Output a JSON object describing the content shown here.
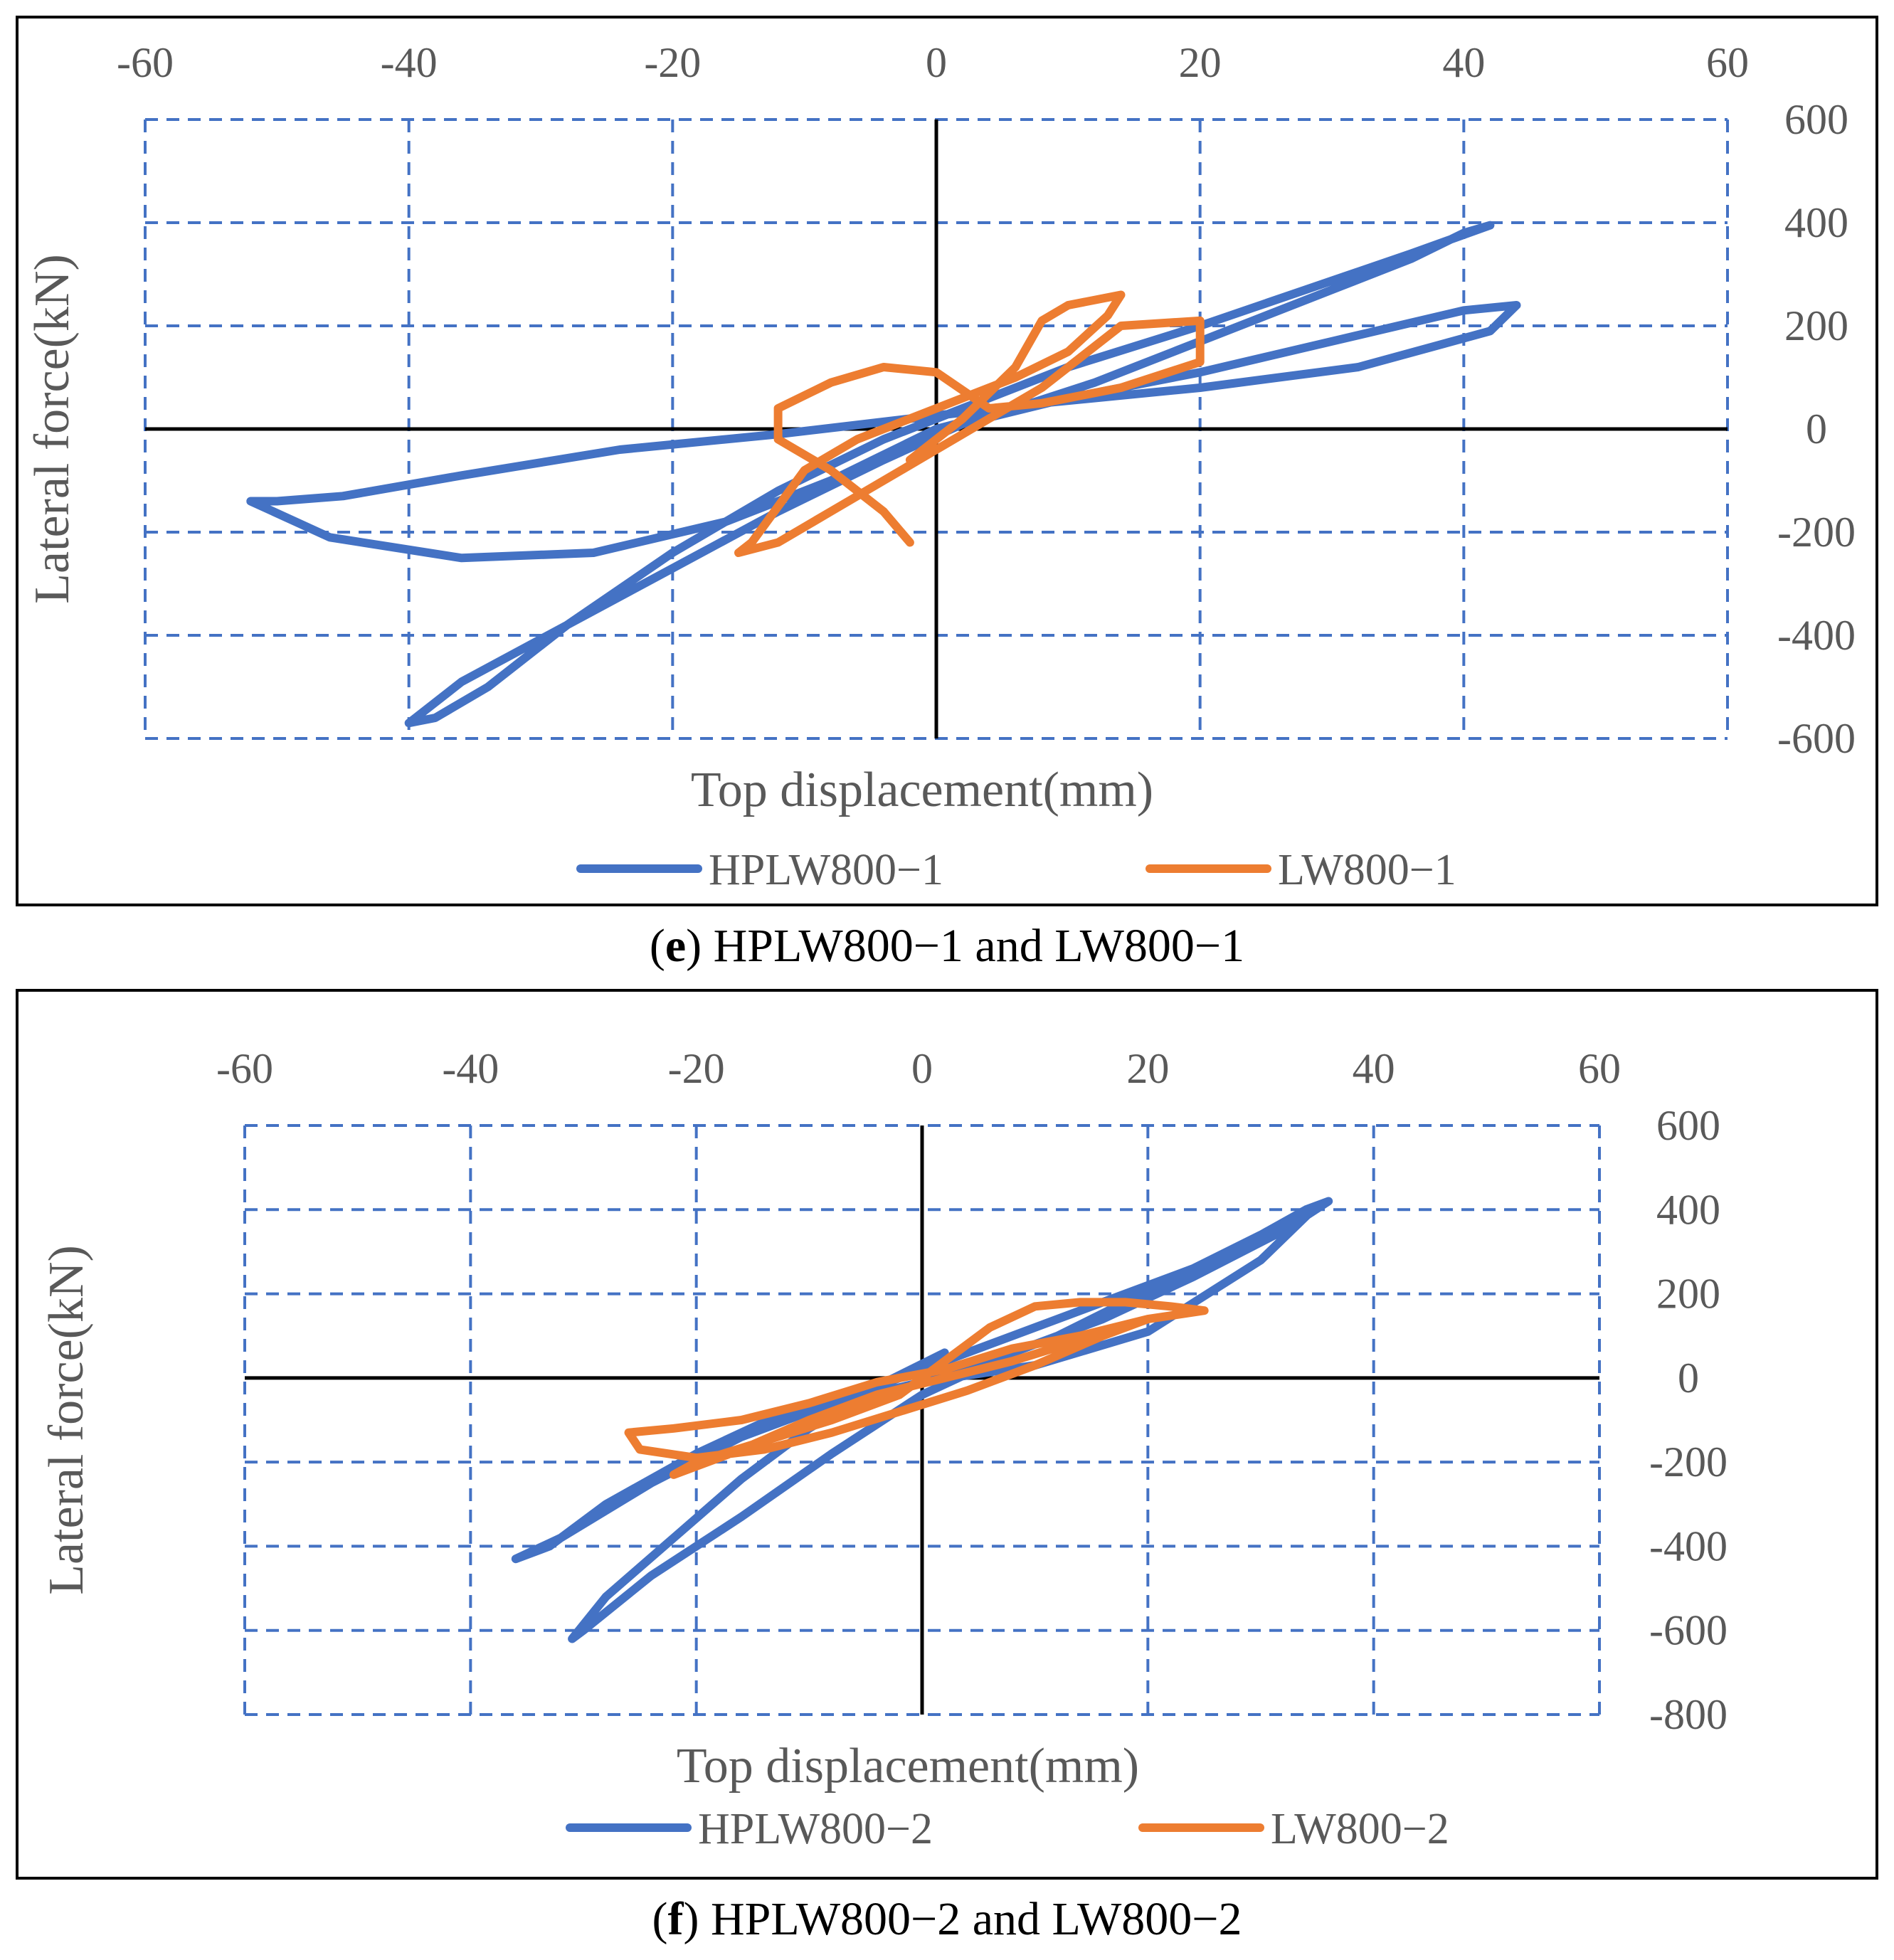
{
  "chart_data": [
    {
      "type": "line",
      "panel_label": "e",
      "caption": "HPLW800−1 and LW800−1",
      "xlabel": "Top displacement(mm)",
      "ylabel": "Lateral force(kN)",
      "xlim": [
        -60,
        60
      ],
      "ylim": [
        -600,
        600
      ],
      "xticks": [
        "-60",
        "-40",
        "-20",
        "0",
        "20",
        "40",
        "60"
      ],
      "yticks": [
        "600",
        "400",
        "200",
        "0",
        "-200",
        "-400",
        "-600"
      ],
      "legend_position": "bottom",
      "series": [
        {
          "name": "HPLW800−1",
          "color": "#4472C4",
          "x": [
            0,
            6,
            12,
            18,
            24,
            30,
            36,
            40,
            42,
            36,
            28,
            20,
            10,
            2,
            -4,
            -12,
            -20,
            -28,
            -34,
            -38,
            -40,
            -36,
            -28,
            -20,
            -12,
            -4,
            2,
            10,
            20,
            30,
            40,
            44,
            42,
            32,
            20,
            8,
            -2,
            -12,
            -24,
            -36,
            -45,
            -50,
            -52,
            -46,
            -36,
            -26,
            -16,
            -8,
            0
          ],
          "y": [
            0,
            40,
            90,
            150,
            210,
            270,
            330,
            380,
            395,
            340,
            270,
            200,
            120,
            40,
            -20,
            -120,
            -240,
            -380,
            -500,
            -560,
            -570,
            -490,
            -380,
            -270,
            -160,
            -60,
            10,
            60,
            110,
            170,
            230,
            240,
            190,
            120,
            80,
            50,
            20,
            -10,
            -40,
            -90,
            -130,
            -140,
            -140,
            -210,
            -250,
            -240,
            -180,
            -100,
            0
          ]
        },
        {
          "name": "LW800−1",
          "color": "#ED7D31",
          "x": [
            -2,
            2,
            6,
            8,
            10,
            14,
            13,
            10,
            6,
            2,
            -2,
            -6,
            -10,
            -12,
            -14,
            -15,
            -12,
            -8,
            -4,
            0,
            4,
            8,
            14,
            20,
            20,
            14,
            8,
            4,
            0,
            -4,
            -8,
            -12,
            -12,
            -8,
            -4,
            -2
          ],
          "y": [
            -60,
            20,
            120,
            210,
            240,
            260,
            220,
            150,
            100,
            60,
            20,
            -20,
            -80,
            -150,
            -220,
            -240,
            -220,
            -160,
            -100,
            -40,
            20,
            80,
            200,
            210,
            130,
            80,
            50,
            40,
            110,
            120,
            90,
            40,
            -20,
            -80,
            -160,
            -220
          ]
        }
      ]
    },
    {
      "type": "line",
      "panel_label": "f",
      "caption": "HPLW800−2 and LW800−2",
      "xlabel": "Top displacement(mm)",
      "ylabel": "Lateral force(kN)",
      "xlim": [
        -60,
        60
      ],
      "ylim": [
        -800,
        600
      ],
      "xticks": [
        "-60",
        "-40",
        "-20",
        "0",
        "20",
        "40",
        "60"
      ],
      "yticks": [
        "600",
        "400",
        "200",
        "0",
        "-200",
        "-400",
        "-600",
        "-800"
      ],
      "legend_position": "bottom",
      "series": [
        {
          "name": "HPLW800−2",
          "color": "#4472C4",
          "x": [
            0,
            6,
            12,
            18,
            24,
            30,
            34,
            36,
            32,
            24,
            16,
            8,
            2,
            -4,
            -10,
            -16,
            -22,
            -28,
            -31,
            -30,
            -24,
            -16,
            -8,
            0,
            8,
            16,
            24,
            32,
            35,
            30,
            20,
            10,
            0,
            -8,
            -16,
            -24,
            -32,
            -36,
            -33,
            -28,
            -20,
            -12,
            -4,
            2
          ],
          "y": [
            0,
            40,
            100,
            180,
            260,
            340,
            400,
            420,
            350,
            260,
            180,
            100,
            40,
            -20,
            -120,
            -240,
            -380,
            -520,
            -620,
            -600,
            -470,
            -330,
            -180,
            -40,
            60,
            140,
            240,
            350,
            410,
            280,
            110,
            30,
            -10,
            -60,
            -140,
            -250,
            -380,
            -430,
            -400,
            -300,
            -180,
            -80,
            -20,
            60
          ]
        },
        {
          "name": "LW800−2",
          "color": "#ED7D31",
          "x": [
            -2,
            2,
            6,
            10,
            14,
            18,
            22,
            25,
            20,
            14,
            8,
            2,
            -4,
            -10,
            -16,
            -22,
            -26,
            -25,
            -20,
            -14,
            -8,
            -2,
            4,
            10,
            16,
            20,
            14,
            8,
            2,
            -4,
            -10,
            -16,
            -22,
            -20,
            -14,
            -8,
            -2
          ],
          "y": [
            -40,
            40,
            120,
            170,
            180,
            180,
            170,
            160,
            140,
            100,
            70,
            20,
            -10,
            -60,
            -100,
            -120,
            -130,
            -170,
            -190,
            -170,
            -130,
            -80,
            -30,
            30,
            100,
            140,
            90,
            40,
            0,
            -40,
            -100,
            -170,
            -230,
            -200,
            -150,
            -100,
            -40
          ]
        }
      ]
    }
  ]
}
